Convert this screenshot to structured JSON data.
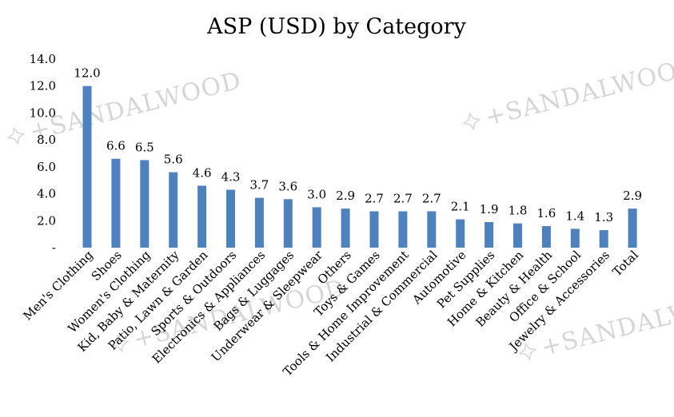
{
  "chart_data": {
    "type": "bar",
    "title": "ASP (USD) by Category",
    "xlabel": "",
    "ylabel": "",
    "ylim": [
      0,
      14
    ],
    "yticks": [
      {
        "value": 0,
        "label": "-"
      },
      {
        "value": 2,
        "label": "2.0"
      },
      {
        "value": 4,
        "label": "4.0"
      },
      {
        "value": 6,
        "label": "6.0"
      },
      {
        "value": 8,
        "label": "8.0"
      },
      {
        "value": 10,
        "label": "10.0"
      },
      {
        "value": 12,
        "label": "12.0"
      },
      {
        "value": 14,
        "label": "14.0"
      }
    ],
    "categories": [
      "Men's Clothing",
      "Shoes",
      "Women's Clothing",
      "Kid, Baby & Maternity",
      "Patio, Lawn & Garden",
      "Sports & Outdoors",
      "Electronics & Appliances",
      "Bags & Luggages",
      "Underwear & Sleepwear",
      "Others",
      "Toys & Games",
      "Tools & Home Improvement",
      "Industrial & Commercial",
      "Automotive",
      "Pet Supplies",
      "Home & Kitchen",
      "Beauty & Health",
      "Office & School",
      "Jewelry & Accessories",
      "Total"
    ],
    "values": [
      12.0,
      6.6,
      6.5,
      5.6,
      4.6,
      4.3,
      3.7,
      3.6,
      3.0,
      2.9,
      2.7,
      2.7,
      2.7,
      2.1,
      1.9,
      1.8,
      1.6,
      1.4,
      1.3,
      2.9
    ],
    "data_labels": [
      "12.0",
      "6.6",
      "6.5",
      "5.6",
      "4.6",
      "4.3",
      "3.7",
      "3.6",
      "3.0",
      "2.9",
      "2.7",
      "2.7",
      "2.7",
      "2.1",
      "1.9",
      "1.8",
      "1.6",
      "1.4",
      "1.3",
      "2.9"
    ],
    "bar_color": "#4f81bd",
    "grid": false,
    "legend": "none"
  },
  "watermark": {
    "text": "SANDALWOOD",
    "color": "#d6d6d6"
  }
}
